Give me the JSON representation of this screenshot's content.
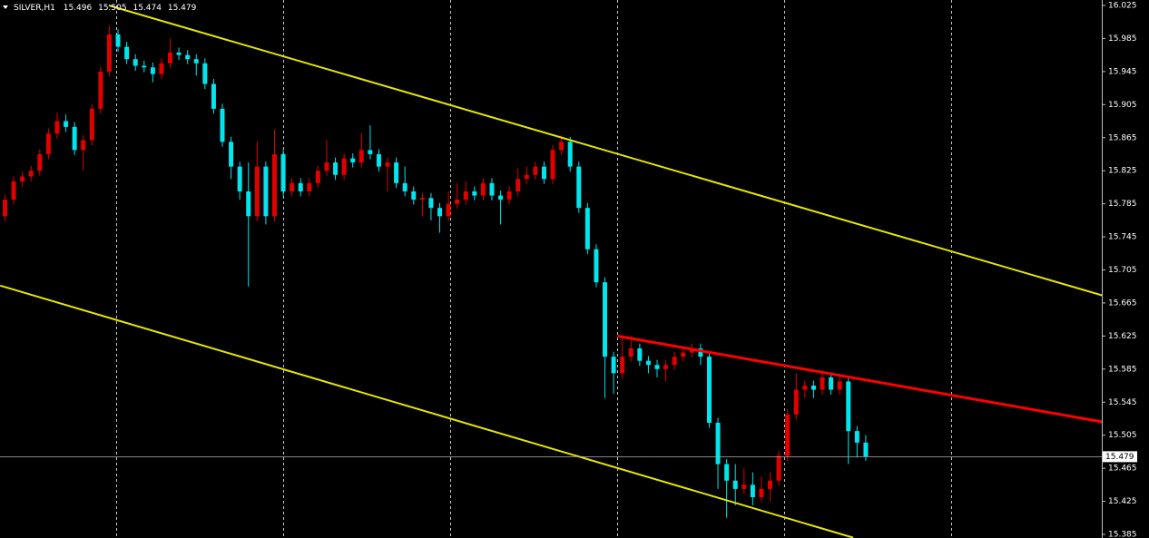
{
  "chart_data": {
    "type": "candlestick",
    "symbol": "SILVER,H1",
    "up_color": "#e00000",
    "down_color": "#00e5ee",
    "grid": true,
    "ylim": [
      15.385,
      16.025
    ],
    "yticks": [
      16.025,
      15.985,
      15.945,
      15.905,
      15.865,
      15.825,
      15.785,
      15.745,
      15.705,
      15.665,
      15.625,
      15.585,
      15.545,
      15.505,
      15.465,
      15.425,
      15.385
    ],
    "ohlc": [
      [
        15.77,
        15.796,
        15.764,
        15.79
      ],
      [
        15.79,
        15.818,
        15.784,
        15.812
      ],
      [
        15.812,
        15.824,
        15.806,
        15.818
      ],
      [
        15.818,
        15.831,
        15.812,
        15.825
      ],
      [
        15.825,
        15.851,
        15.819,
        15.845
      ],
      [
        15.845,
        15.876,
        15.839,
        15.87
      ],
      [
        15.87,
        15.895,
        15.864,
        15.885
      ],
      [
        15.885,
        15.893,
        15.872,
        15.878
      ],
      [
        15.878,
        15.884,
        15.844,
        15.85
      ],
      [
        15.85,
        15.868,
        15.825,
        15.862
      ],
      [
        15.862,
        15.906,
        15.856,
        15.9
      ],
      [
        15.9,
        15.951,
        15.894,
        15.945
      ],
      [
        15.945,
        16.0,
        15.939,
        15.99
      ],
      [
        15.99,
        15.996,
        15.969,
        15.975
      ],
      [
        15.975,
        15.981,
        15.954,
        15.96
      ],
      [
        15.96,
        15.966,
        15.946,
        15.952
      ],
      [
        15.952,
        15.958,
        15.944,
        15.95
      ],
      [
        15.95,
        15.956,
        15.932,
        15.942
      ],
      [
        15.942,
        15.961,
        15.936,
        15.955
      ],
      [
        15.955,
        15.985,
        15.949,
        15.968
      ],
      [
        15.968,
        15.974,
        15.959,
        15.965
      ],
      [
        15.965,
        15.971,
        15.954,
        15.96
      ],
      [
        15.96,
        15.966,
        15.94,
        15.955
      ],
      [
        15.955,
        15.961,
        15.924,
        15.93
      ],
      [
        15.93,
        15.936,
        15.894,
        15.9
      ],
      [
        15.9,
        15.906,
        15.854,
        15.86
      ],
      [
        15.86,
        15.866,
        15.815,
        15.83
      ],
      [
        15.83,
        15.836,
        15.79,
        15.8
      ],
      [
        15.8,
        15.835,
        15.685,
        15.77
      ],
      [
        15.77,
        15.86,
        15.764,
        15.83
      ],
      [
        15.83,
        15.836,
        15.76,
        15.77
      ],
      [
        15.77,
        15.875,
        15.764,
        15.845
      ],
      [
        15.845,
        15.851,
        15.794,
        15.8
      ],
      [
        15.8,
        15.816,
        15.794,
        15.81
      ],
      [
        15.81,
        15.816,
        15.794,
        15.8
      ],
      [
        15.8,
        15.816,
        15.794,
        15.81
      ],
      [
        15.81,
        15.831,
        15.804,
        15.825
      ],
      [
        15.825,
        15.862,
        15.819,
        15.835
      ],
      [
        15.835,
        15.841,
        15.814,
        15.82
      ],
      [
        15.82,
        15.846,
        15.814,
        15.84
      ],
      [
        15.84,
        15.846,
        15.829,
        15.835
      ],
      [
        15.835,
        15.87,
        15.829,
        15.85
      ],
      [
        15.85,
        15.88,
        15.839,
        15.845
      ],
      [
        15.845,
        15.851,
        15.824,
        15.83
      ],
      [
        15.83,
        15.841,
        15.8,
        15.835
      ],
      [
        15.835,
        15.841,
        15.804,
        15.81
      ],
      [
        15.81,
        15.83,
        15.794,
        15.8
      ],
      [
        15.8,
        15.806,
        15.784,
        15.79
      ],
      [
        15.79,
        15.798,
        15.77,
        15.792
      ],
      [
        15.792,
        15.798,
        15.765,
        15.78
      ],
      [
        15.78,
        15.786,
        15.75,
        15.77
      ],
      [
        15.77,
        15.8,
        15.764,
        15.785
      ],
      [
        15.785,
        15.81,
        15.779,
        15.79
      ],
      [
        15.79,
        15.812,
        15.784,
        15.8
      ],
      [
        15.8,
        15.806,
        15.789,
        15.795
      ],
      [
        15.795,
        15.816,
        15.789,
        15.81
      ],
      [
        15.81,
        15.816,
        15.789,
        15.795
      ],
      [
        15.795,
        15.801,
        15.76,
        15.79
      ],
      [
        15.79,
        15.806,
        15.784,
        15.8
      ],
      [
        15.8,
        15.828,
        15.794,
        15.815
      ],
      [
        15.815,
        15.83,
        15.809,
        15.82
      ],
      [
        15.82,
        15.836,
        15.814,
        15.83
      ],
      [
        15.83,
        15.836,
        15.809,
        15.815
      ],
      [
        15.815,
        15.856,
        15.809,
        15.85
      ],
      [
        15.85,
        15.868,
        15.844,
        15.86
      ],
      [
        15.86,
        15.866,
        15.824,
        15.83
      ],
      [
        15.83,
        15.836,
        15.774,
        15.78
      ],
      [
        15.78,
        15.786,
        15.724,
        15.73
      ],
      [
        15.73,
        15.736,
        15.684,
        15.69
      ],
      [
        15.69,
        15.696,
        15.55,
        15.6
      ],
      [
        15.6,
        15.606,
        15.555,
        15.58
      ],
      [
        15.58,
        15.625,
        15.574,
        15.6
      ],
      [
        15.6,
        15.625,
        15.594,
        15.61
      ],
      [
        15.61,
        15.616,
        15.589,
        15.595
      ],
      [
        15.595,
        15.601,
        15.58,
        15.59
      ],
      [
        15.59,
        15.596,
        15.575,
        15.585
      ],
      [
        15.585,
        15.596,
        15.57,
        15.59
      ],
      [
        15.59,
        15.606,
        15.584,
        15.6
      ],
      [
        15.6,
        15.612,
        15.594,
        15.605
      ],
      [
        15.605,
        15.616,
        15.599,
        15.61
      ],
      [
        15.61,
        15.616,
        15.59,
        15.6
      ],
      [
        15.6,
        15.606,
        15.514,
        15.52
      ],
      [
        15.52,
        15.526,
        15.44,
        15.47
      ],
      [
        15.47,
        15.476,
        15.405,
        15.45
      ],
      [
        15.45,
        15.47,
        15.42,
        15.44
      ],
      [
        15.44,
        15.465,
        15.434,
        15.445
      ],
      [
        15.445,
        15.46,
        15.42,
        15.43
      ],
      [
        15.43,
        15.455,
        15.424,
        15.44
      ],
      [
        15.44,
        15.46,
        15.425,
        15.45
      ],
      [
        15.45,
        15.486,
        15.444,
        15.48
      ],
      [
        15.48,
        15.536,
        15.474,
        15.53
      ],
      [
        15.53,
        15.58,
        15.524,
        15.56
      ],
      [
        15.56,
        15.571,
        15.55,
        15.565
      ],
      [
        15.565,
        15.571,
        15.55,
        15.56
      ],
      [
        15.56,
        15.581,
        15.554,
        15.575
      ],
      [
        15.575,
        15.581,
        15.554,
        15.56
      ],
      [
        15.56,
        15.576,
        15.554,
        15.57
      ],
      [
        15.57,
        15.576,
        15.47,
        15.51
      ],
      [
        15.51,
        15.516,
        15.478,
        15.496
      ],
      [
        15.496,
        15.505,
        15.474,
        15.479
      ]
    ],
    "lines": [
      {
        "color": "#e6e600",
        "points": [
          [
            12,
            16.025
          ],
          [
            126.3,
            15.674
          ]
        ]
      },
      {
        "color": "#e6e600",
        "points": [
          [
            -0.5,
            15.686
          ],
          [
            97.6,
            15.381
          ]
        ]
      },
      {
        "color": "#ff0000",
        "points": [
          [
            70.5,
            15.625
          ],
          [
            126.3,
            15.521
          ]
        ]
      }
    ]
  }
}
